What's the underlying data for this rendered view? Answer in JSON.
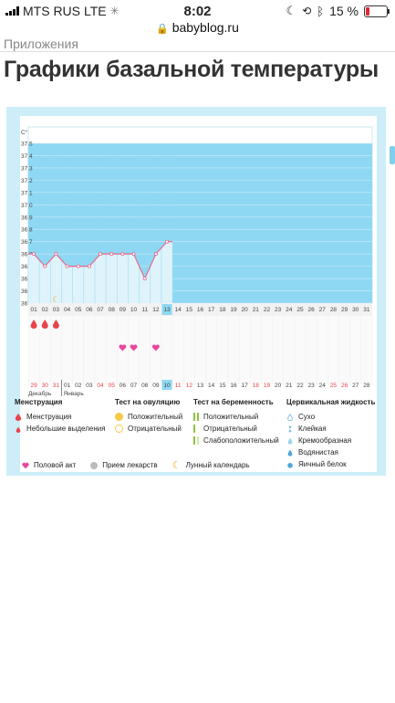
{
  "status_bar": {
    "carrier": "MTS RUS",
    "network": "LTE",
    "time": "8:02",
    "battery": "15 %"
  },
  "browser": {
    "url": "babyblog.ru"
  },
  "breadcrumb": "Приложения",
  "page_title": "Графики базальной температуры",
  "chart_data": {
    "type": "line",
    "unit_label": "С°",
    "y_ticks": [
      "37.5",
      "37.4",
      "37.3",
      "37.2",
      "37.1",
      "37.0",
      "36.9",
      "36.8",
      "36.7",
      "36.6",
      "36.5",
      "36.4",
      "36.3",
      "36.2"
    ],
    "ylim": [
      36.2,
      37.5
    ],
    "cycle_days": [
      "01",
      "02",
      "03",
      "04",
      "05",
      "06",
      "07",
      "08",
      "09",
      "10",
      "11",
      "12",
      "13",
      "14",
      "15",
      "16",
      "17",
      "18",
      "19",
      "20",
      "21",
      "22",
      "23",
      "24",
      "25",
      "26",
      "27",
      "28",
      "29",
      "30",
      "31"
    ],
    "current_day": "13",
    "temperature": [
      36.6,
      36.5,
      36.6,
      36.5,
      36.5,
      36.5,
      36.6,
      36.6,
      36.6,
      36.6,
      36.4,
      36.6,
      36.7
    ],
    "menstruation_days": [
      "01",
      "02",
      "03"
    ],
    "moon_day": "03",
    "intercourse_days": [
      "09",
      "10",
      "12"
    ],
    "calendar_dates": [
      "29",
      "30",
      "31",
      "01",
      "02",
      "03",
      "04",
      "05",
      "06",
      "07",
      "08",
      "09",
      "10",
      "11",
      "12",
      "13",
      "14",
      "15",
      "16",
      "17",
      "18",
      "19",
      "20",
      "21",
      "22",
      "23",
      "24",
      "25",
      "26",
      "27",
      "28"
    ],
    "weekend_dates": [
      "29",
      "30",
      "31",
      "04",
      "05",
      "11",
      "12",
      "18",
      "19",
      "25",
      "26"
    ],
    "today_date": "10",
    "months": [
      "Декабрь",
      "Январь"
    ]
  },
  "legend": {
    "menstruation": {
      "title": "Менструация",
      "items": [
        "Менструация",
        "Небольшие выделения"
      ]
    },
    "ovulation_test": {
      "title": "Тест на овуляцию",
      "items": [
        "Положительный",
        "Отрицательный"
      ]
    },
    "pregnancy_test": {
      "title": "Тест на беременность",
      "items": [
        "Положительный",
        "Отрицательный",
        "Слабоположительный"
      ]
    },
    "cervical": {
      "title": "Цервикальная жидкость",
      "items": [
        "Сухо",
        "Клейкая",
        "Кремообразная",
        "Водянистая",
        "Яичный белок"
      ]
    },
    "other": [
      "Половой акт",
      "Прием лекарств",
      "Лунный календарь"
    ]
  },
  "colors": {
    "chart_fill": "#8fd8f3",
    "line": "#e26a8a",
    "weekend": "#e8434b",
    "panel": "#cdeef8",
    "drop": "#e8434b",
    "heart": "#e8479e"
  }
}
